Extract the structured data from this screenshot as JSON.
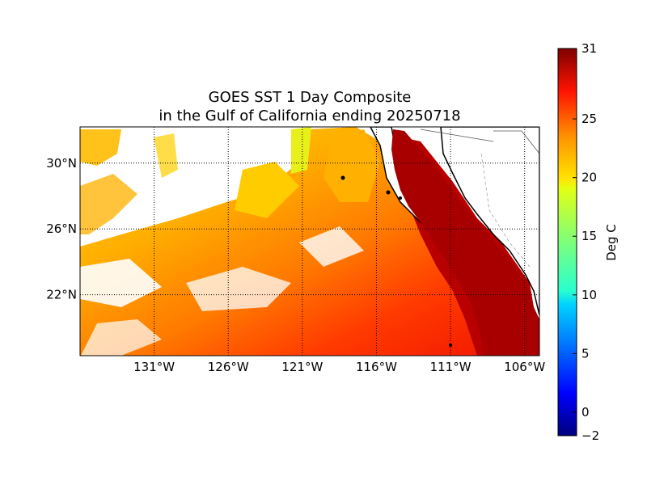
{
  "title": {
    "line1": "GOES SST 1 Day Composite",
    "line2": "in the Gulf of California ending 20250718"
  },
  "map": {
    "lon_range": [
      -136,
      -105
    ],
    "lat_range": [
      18.3,
      32.2
    ],
    "lon_ticks": [
      {
        "value": -131,
        "label": "131°W"
      },
      {
        "value": -126,
        "label": "126°W"
      },
      {
        "value": -121,
        "label": "121°W"
      },
      {
        "value": -116,
        "label": "116°W"
      },
      {
        "value": -111,
        "label": "111°W"
      },
      {
        "value": -106,
        "label": "106°W"
      }
    ],
    "lat_ticks": [
      {
        "value": 30,
        "label": "30°N"
      },
      {
        "value": 26,
        "label": "26°N"
      },
      {
        "value": 22,
        "label": "22°N"
      }
    ],
    "grid": "dotted",
    "land_color": "#ffffff",
    "coast_color": "#000000",
    "sst_gradient": "cooler (yellow/orange) offshore north-west, warmer (red/dark red) toward south-east and inside the Gulf of California"
  },
  "colorbar": {
    "label": "Deg C",
    "min": -2,
    "max": 31,
    "colormap": "jet",
    "ticks": [
      {
        "value": -2,
        "label": "−2"
      },
      {
        "value": 0,
        "label": "0"
      },
      {
        "value": 5,
        "label": "5"
      },
      {
        "value": 10,
        "label": "10"
      },
      {
        "value": 15,
        "label": "15"
      },
      {
        "value": 20,
        "label": "20"
      },
      {
        "value": 25,
        "label": "25"
      },
      {
        "value": 31,
        "label": "31"
      }
    ]
  }
}
